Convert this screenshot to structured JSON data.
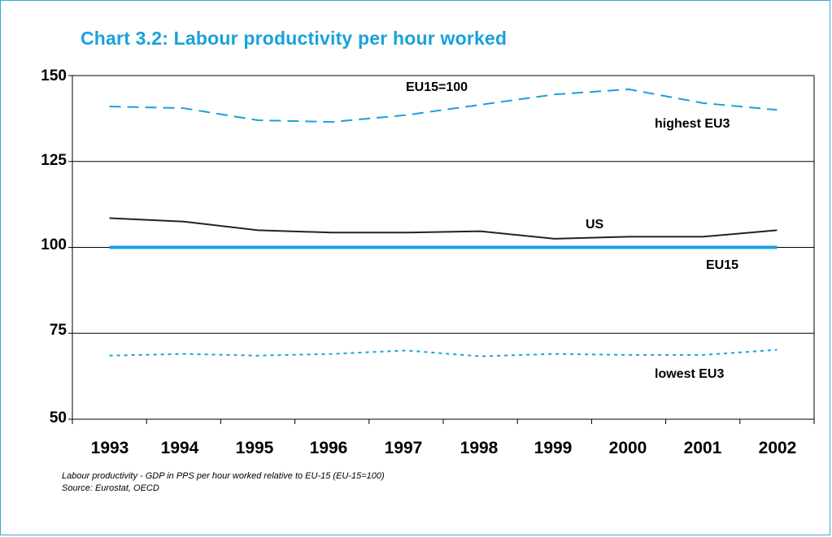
{
  "title": "Chart 3.2:  Labour productivity per hour worked",
  "notes": {
    "line1": "Labour productivity - GDP in PPS per hour worked relative to EU-15 (EU-15=100)",
    "line2": "Source:  Eurostat, OECD"
  },
  "colors": {
    "frame": "#37a9d8",
    "title": "#19a1dc",
    "highest_eu3": "#19a1dc",
    "eu15": "#19a1dc",
    "lowest_eu3": "#19a1dc",
    "us": "#222222",
    "grid": "#000000"
  },
  "chart_data": {
    "type": "line",
    "x": [
      "1993",
      "1994",
      "1995",
      "1996",
      "1997",
      "1998",
      "1999",
      "2000",
      "2001",
      "2002"
    ],
    "ylim": [
      50,
      150
    ],
    "yticks": [
      "150",
      "125",
      "100",
      "75",
      "50"
    ],
    "grid": true,
    "series": [
      {
        "name": "highest EU3",
        "style": "dashed",
        "values": [
          141,
          140.5,
          137,
          136.5,
          138.5,
          141.5,
          144.5,
          146,
          142,
          140
        ]
      },
      {
        "name": "US",
        "style": "solid",
        "values": [
          108.5,
          107.5,
          105,
          104.3,
          104.3,
          104.7,
          102.5,
          103.1,
          103.1,
          105
        ]
      },
      {
        "name": "EU15",
        "style": "solid-thick",
        "values": [
          100,
          100,
          100,
          100,
          100,
          100,
          100,
          100,
          100,
          100
        ]
      },
      {
        "name": "lowest EU3",
        "style": "dotted",
        "values": [
          68.5,
          69,
          68.5,
          69,
          70,
          68.3,
          69,
          68.7,
          68.7,
          70.2
        ]
      }
    ],
    "annotations": [
      "EU15=100",
      "highest EU3",
      "US",
      "EU15",
      "lowest EU3"
    ]
  }
}
